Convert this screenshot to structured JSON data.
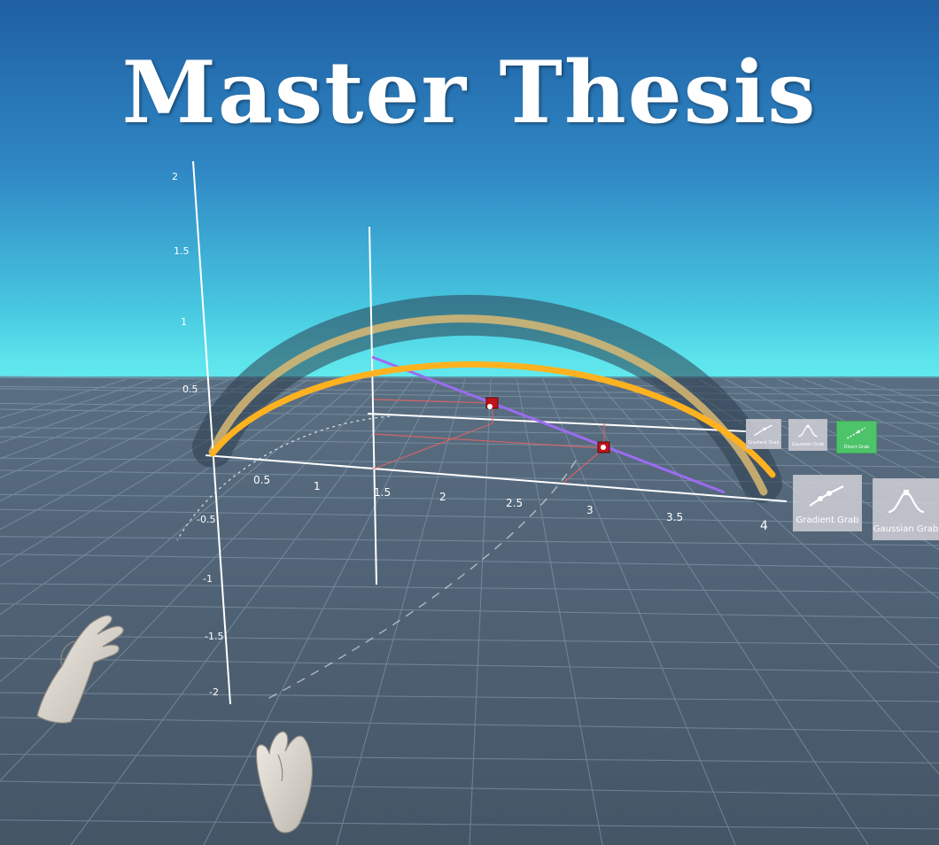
{
  "title": "Master Thesis",
  "colors": {
    "sky_top": "#1f5fa3",
    "sky_horizon": "#5fe9ee",
    "ground": "#4b5d71",
    "gridline": "#8da1b4",
    "curve_orange": "#ffb21f",
    "curve_faded": "#d9b873",
    "fit_line": "#9b6cf0",
    "marker": "#c0121a",
    "button_gray": "#cdcdd4",
    "button_active": "#4ec46a"
  },
  "axes": {
    "x_labels": [
      "0.5",
      "1",
      "1.5",
      "2",
      "2.5",
      "3",
      "3.5",
      "4"
    ],
    "y_labels": [
      "2",
      "1.5",
      "1",
      "0.5"
    ],
    "neg_labels": [
      "-0.5",
      "-1",
      "-1.5",
      "-2"
    ]
  },
  "buttons": {
    "small": [
      {
        "label": "Gradient Grab",
        "icon": "gradient-grab-icon",
        "active": false
      },
      {
        "label": "Gaussian Grab",
        "icon": "gaussian-grab-icon",
        "active": false
      },
      {
        "label": "Direct Grab",
        "icon": "direct-grab-icon",
        "active": true
      }
    ],
    "large": [
      {
        "label": "Gradient Grab",
        "icon": "gradient-grab-icon"
      },
      {
        "label": "Gaussian Grab",
        "icon": "gaussian-grab-icon"
      }
    ]
  },
  "hands": [
    "left-hand",
    "right-hand"
  ]
}
